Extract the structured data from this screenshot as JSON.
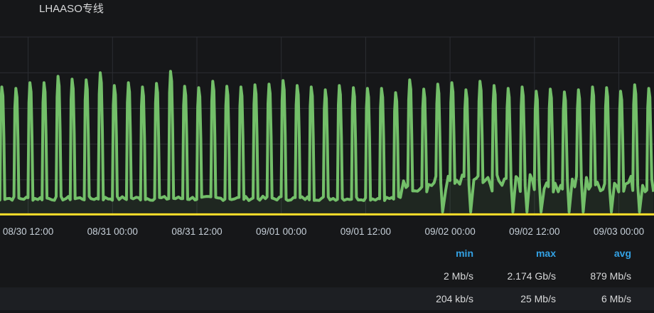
{
  "panel": {
    "title": "LHAASO专线"
  },
  "chart_data": {
    "type": "line",
    "x_range": [
      "2019-08-30 08:00",
      "2019-09-03 05:00"
    ],
    "y_range_gbps": [
      0,
      2.5
    ],
    "grid": true,
    "x_ticks": [
      "08/30 12:00",
      "08/31 00:00",
      "08/31 12:00",
      "09/01 00:00",
      "09/01 12:00",
      "09/02 00:00",
      "09/02 12:00",
      "09/03 00:00"
    ],
    "series": [
      {
        "color": "#73bf69",
        "first_peak": "2019-08-30 08:20",
        "peak_interval_hours": 2,
        "peaks_gbps": [
          1.8,
          1.78,
          1.86,
          1.86,
          1.95,
          1.91,
          1.9,
          2.0,
          1.82,
          1.86,
          1.8,
          1.85,
          2.02,
          1.81,
          1.79,
          1.88,
          1.81,
          1.8,
          1.83,
          1.84,
          1.89,
          1.82,
          1.8,
          1.76,
          1.82,
          1.79,
          1.78,
          1.78,
          1.72,
          1.9,
          1.77,
          1.84,
          1.86,
          1.76,
          1.88,
          1.82,
          1.78,
          1.8,
          1.74,
          1.77,
          1.73,
          1.76,
          1.8,
          1.79,
          1.74,
          1.83,
          1.78
        ],
        "baseline_gbps": [
          {
            "from": "2019-08-30 08:00",
            "value": 0.24
          },
          {
            "from": "2019-09-01 17:30",
            "value": 0.45
          }
        ]
      },
      {
        "color": "#fade2a",
        "level_gbps": 0.006
      }
    ]
  },
  "legend": {
    "headers": [
      "min",
      "max",
      "avg"
    ],
    "rows": [
      [
        "2 Mb/s",
        "2.174 Gb/s",
        "879 Mb/s"
      ],
      [
        "204 kb/s",
        "25 Mb/s",
        "6 Mb/s"
      ]
    ]
  }
}
